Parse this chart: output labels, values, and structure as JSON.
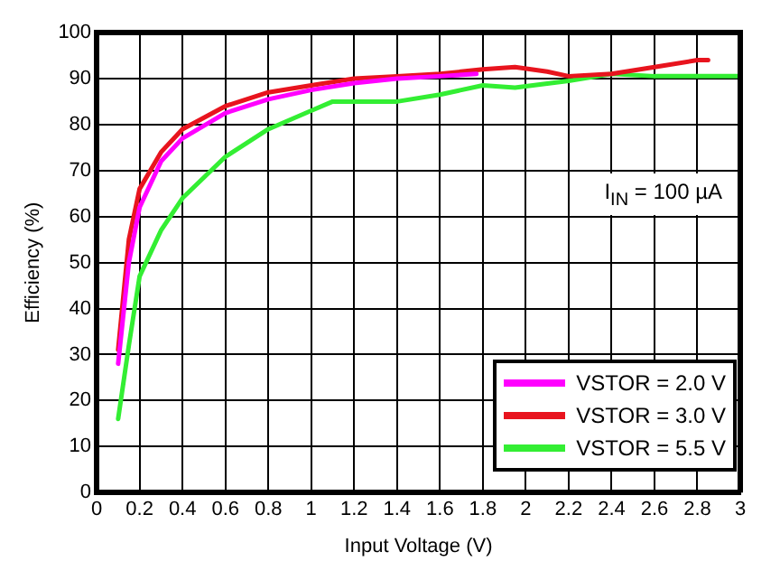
{
  "chart_data": {
    "type": "line",
    "xlabel": "Input Voltage (V)",
    "ylabel": "Efficiency (%)",
    "xlim": [
      0,
      3
    ],
    "xticks": [
      0,
      0.2,
      0.4,
      0.6,
      0.8,
      1,
      1.2,
      1.4,
      1.6,
      1.8,
      2,
      2.2,
      2.4,
      2.6,
      2.8,
      3
    ],
    "ylim": [
      0,
      100
    ],
    "yticks": [
      0,
      10,
      20,
      30,
      40,
      50,
      60,
      70,
      80,
      90,
      100
    ],
    "grid": true,
    "legend": "bottom right",
    "marker": "none",
    "line_style": "solid",
    "annotations": [
      "I$_{IN}$ = 100 µA"
    ],
    "series": [
      {
        "name": "VSTOR = 2.0 V",
        "color": "#ff00ff",
        "x": [
          0.1,
          0.15,
          0.2,
          0.3,
          0.4,
          0.6,
          0.8,
          1.0,
          1.2,
          1.4,
          1.6,
          1.77
        ],
        "values": [
          28,
          50,
          62,
          72,
          77,
          82.5,
          85.5,
          87.5,
          89,
          90,
          90.5,
          91
        ]
      },
      {
        "name": "VSTOR = 3.0 V",
        "color": "#e8141e",
        "x": [
          0.1,
          0.15,
          0.2,
          0.3,
          0.4,
          0.6,
          0.8,
          1.0,
          1.2,
          1.4,
          1.6,
          1.8,
          1.95,
          2.1,
          2.2,
          2.4,
          2.6,
          2.8,
          2.85
        ],
        "values": [
          31,
          55,
          66,
          74,
          79,
          84,
          87,
          88.5,
          90,
          90.5,
          91,
          92,
          92.5,
          91.5,
          90.5,
          91,
          92.5,
          94,
          94
        ]
      },
      {
        "name": "VSTOR = 5.5 V",
        "color": "#33ee33",
        "x": [
          0.1,
          0.15,
          0.2,
          0.3,
          0.4,
          0.6,
          0.8,
          1.0,
          1.1,
          1.4,
          1.6,
          1.8,
          1.95,
          2.2,
          2.4,
          2.6,
          2.8,
          3.0
        ],
        "values": [
          16,
          32,
          47,
          57,
          64,
          73,
          79,
          83,
          85,
          85,
          86.5,
          88.5,
          88,
          89.5,
          91,
          90.5,
          90.5,
          90.5
        ]
      }
    ]
  }
}
